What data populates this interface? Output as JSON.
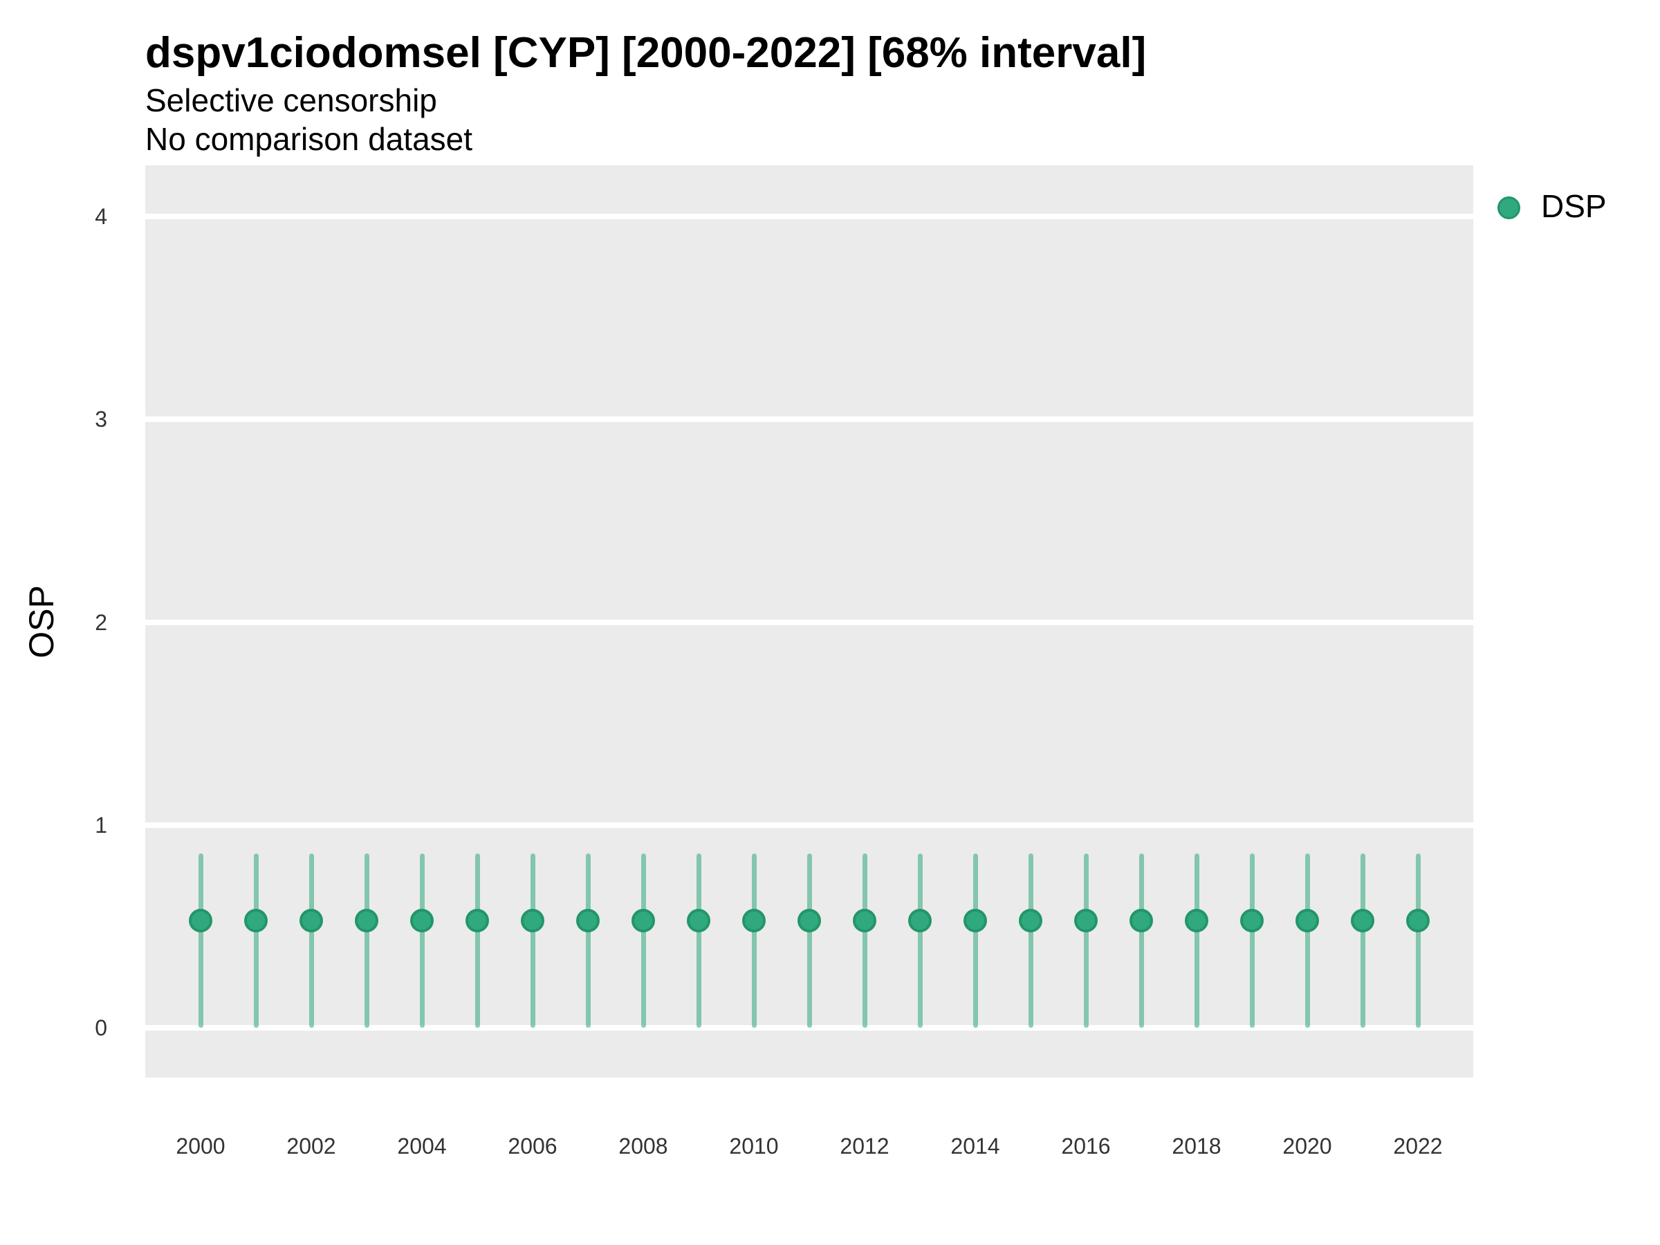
{
  "header": {
    "title": "dspv1ciodomsel [CYP] [2000-2022] [68% interval]",
    "subtitle1": "Selective censorship",
    "subtitle2": "No comparison dataset"
  },
  "axes": {
    "y_label": "OSP",
    "x_label": "",
    "y_ticks": [
      4,
      3,
      2,
      1,
      0
    ],
    "x_ticks": [
      2000,
      2002,
      2004,
      2006,
      2008,
      2010,
      2012,
      2014,
      2016,
      2018,
      2020,
      2022
    ]
  },
  "legend": {
    "position": "right",
    "items": [
      {
        "label": "DSP",
        "marker": "circle-icon",
        "color": "#2FA97D"
      }
    ]
  },
  "colors": {
    "point_fill": "#31A97E",
    "point_stroke": "#239669",
    "interval_bar": "rgba(46,168,124,0.55)",
    "panel_background": "#EBEBEB",
    "gridline": "#FFFFFF",
    "text": "#000000",
    "tick_text": "#333333"
  },
  "chart_data": {
    "type": "scatter",
    "title": "dspv1ciodomsel [CYP] [2000-2022] [68% interval]",
    "subtitle": [
      "Selective censorship",
      "No comparison dataset"
    ],
    "xlabel": "",
    "ylabel": "OSP",
    "xlim": [
      1999,
      2023
    ],
    "ylim": [
      -0.25,
      4.25
    ],
    "grid": "horizontal-major-only",
    "legend_position": "right-top",
    "interval_level": "68%",
    "series": [
      {
        "name": "DSP",
        "style": "pointrange",
        "x": [
          2000,
          2001,
          2002,
          2003,
          2004,
          2005,
          2006,
          2007,
          2008,
          2009,
          2010,
          2011,
          2012,
          2013,
          2014,
          2015,
          2016,
          2017,
          2018,
          2019,
          2020,
          2021,
          2022
        ],
        "y": [
          0.53,
          0.53,
          0.53,
          0.53,
          0.53,
          0.53,
          0.53,
          0.53,
          0.53,
          0.53,
          0.53,
          0.53,
          0.53,
          0.53,
          0.53,
          0.53,
          0.53,
          0.53,
          0.53,
          0.53,
          0.53,
          0.53,
          0.53
        ],
        "y_lo": [
          0.0,
          0.0,
          0.0,
          0.0,
          0.0,
          0.0,
          0.0,
          0.0,
          0.0,
          0.0,
          0.0,
          0.0,
          0.0,
          0.0,
          0.0,
          0.0,
          0.0,
          0.0,
          0.0,
          0.0,
          0.0,
          0.0,
          0.0
        ],
        "y_hi": [
          0.86,
          0.86,
          0.86,
          0.86,
          0.86,
          0.86,
          0.86,
          0.86,
          0.86,
          0.86,
          0.86,
          0.86,
          0.86,
          0.86,
          0.86,
          0.86,
          0.86,
          0.86,
          0.86,
          0.86,
          0.86,
          0.86,
          0.86
        ]
      }
    ]
  }
}
